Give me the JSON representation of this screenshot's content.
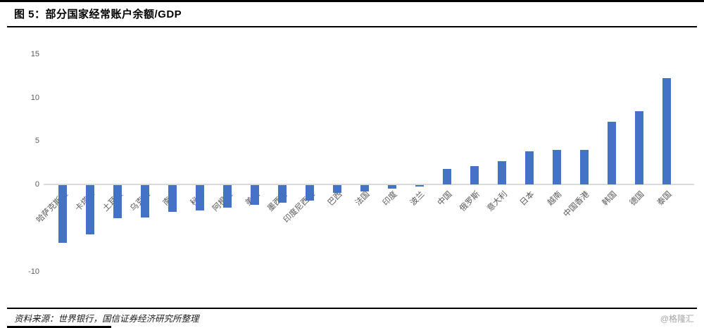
{
  "figure": {
    "title": "图 5：部分国家经常账户余额/GDP",
    "source_note": "资料来源：世界银行，国信证券经济研究所整理",
    "watermark": "@格隆汇"
  },
  "chart_data": {
    "type": "bar",
    "title": "部分国家经常账户余额/GDP",
    "xlabel": "",
    "ylabel": "",
    "categories": [
      "哈萨克斯坦",
      "卡塔尔",
      "土耳其",
      "乌克兰",
      "南非",
      "秘鲁",
      "阿根廷",
      "美国",
      "墨西哥",
      "印度尼西亚",
      "巴西",
      "法国",
      "印度",
      "波兰",
      "中国",
      "俄罗斯",
      "意大利",
      "日本",
      "越南",
      "中国香港",
      "韩国",
      "德国",
      "泰国"
    ],
    "values": [
      -6.6,
      -5.7,
      -3.8,
      -3.7,
      -3.1,
      -2.9,
      -2.6,
      -2.3,
      -2.0,
      -1.8,
      -0.9,
      -0.7,
      -0.4,
      -0.2,
      1.8,
      2.1,
      2.7,
      3.8,
      4.0,
      4.0,
      7.2,
      8.4,
      12.2
    ],
    "ylim": [
      -10,
      15
    ],
    "yticks": [
      15,
      10,
      5,
      0,
      -10
    ],
    "grid": false,
    "legend_position": "none",
    "bar_color": "#4472C4",
    "axis_line_color": "#D9D9D9",
    "tick_label_color": "#595959"
  }
}
